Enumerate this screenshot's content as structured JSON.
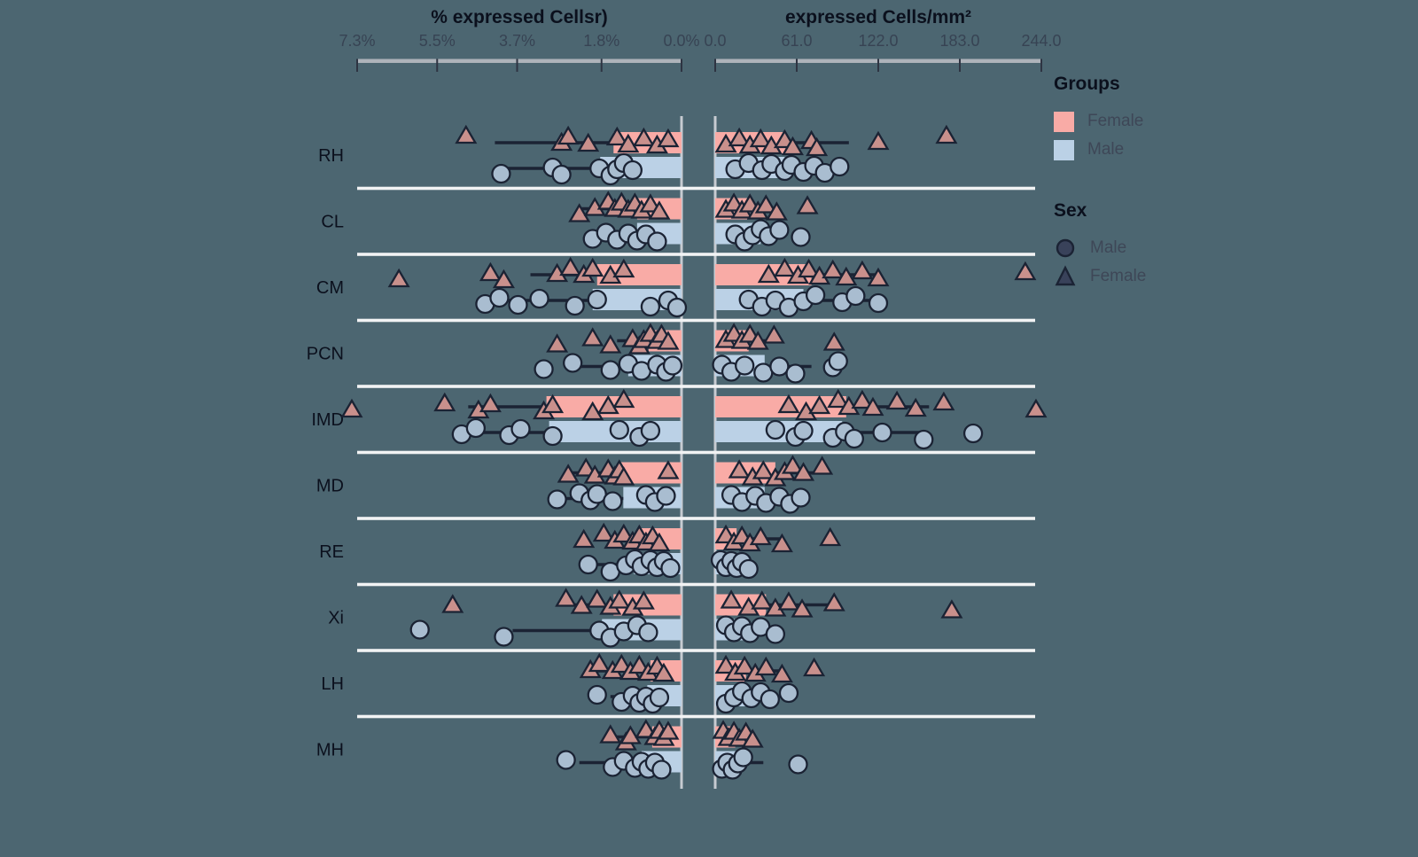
{
  "colors": {
    "background": "#4C6671",
    "female_bar": "#F9ABA6",
    "male_bar": "#BBD1E6",
    "female_point": "#C9908C",
    "male_point": "#A9BDD0",
    "outline": "#1B2334",
    "separator": "#F2F3F4",
    "zero_line": "#C6CBD1",
    "axis_line": "#AEB3BA",
    "tick": "#2E3442",
    "title": "#0B101D",
    "legend_marker": "#39425A"
  },
  "legend": {
    "groups_title": "Groups",
    "groups": [
      {
        "label": "Female",
        "color": "#F9ABA6"
      },
      {
        "label": "Male",
        "color": "#BBD1E6"
      }
    ],
    "sex_title": "Sex",
    "sex": [
      {
        "label": "Male",
        "marker": "circle"
      },
      {
        "label": "Female",
        "marker": "triangle"
      }
    ]
  },
  "chart_data": {
    "type": "bar",
    "subtype": "back-to-back horizontal bars (population-pyramid style) with error bars and jittered points",
    "categories": [
      "RH",
      "CL",
      "CM",
      "PCN",
      "IMD",
      "MD",
      "RE",
      "Xi",
      "LH",
      "MH"
    ],
    "panels": [
      {
        "side": "left",
        "title": "% expressed Cellsr)",
        "tick_labels": [
          "7.3%",
          "5.5%",
          "3.7%",
          "1.8%",
          "0.0%"
        ],
        "tick_values": [
          7.3,
          5.5,
          3.7,
          1.8,
          0.0
        ],
        "axis_min": 0,
        "axis_max": 7.3,
        "reversed": true,
        "unit": "%"
      },
      {
        "side": "right",
        "title": "expressed Cells/mm²",
        "tick_labels": [
          "0.0",
          "61.0",
          "122.0",
          "183.0",
          "244.0"
        ],
        "tick_values": [
          0,
          61,
          122,
          183,
          244
        ],
        "axis_min": 0,
        "axis_max": 244,
        "reversed": false,
        "unit": "cells/mm²"
      }
    ],
    "legend_position": "right",
    "grid": false,
    "rows": [
      {
        "label": "RH",
        "left": {
          "female": {
            "bar": 1.53,
            "whisker": [
              1.53,
              4.2
            ],
            "points": [
              4.85,
              2.7,
              2.55,
              2.1,
              1.45,
              1.2,
              0.85,
              0.55,
              0.3
            ]
          },
          "male": {
            "bar": 1.83,
            "whisker": [
              1.83,
              4.2
            ],
            "points": [
              4.06,
              2.9,
              2.7,
              1.85,
              1.6,
              1.45,
              1.3,
              1.1
            ]
          }
        },
        "right": {
          "female": {
            "bar": 53,
            "whisker": [
              53,
              100
            ],
            "points": [
              8,
              18,
              26,
              34,
              42,
              52,
              58,
              72,
              76,
              122,
              173
            ]
          },
          "male": {
            "bar": 52,
            "whisker": [
              52,
              82
            ],
            "points": [
              15,
              25,
              35,
              42,
              52,
              57,
              66,
              74,
              82,
              93
            ]
          }
        }
      },
      {
        "label": "CL",
        "left": {
          "female": {
            "bar": 1.0,
            "whisker": [
              1.0,
              2.3
            ],
            "points": [
              2.3,
              1.95,
              1.65,
              1.5,
              1.35,
              1.2,
              1.05,
              0.9,
              0.7,
              0.5
            ]
          },
          "male": {
            "bar": 1.0,
            "whisker": [
              1.0,
              2.0
            ],
            "points": [
              2.0,
              1.7,
              1.45,
              1.2,
              1.0,
              0.8,
              0.55
            ]
          }
        },
        "right": {
          "female": {
            "bar": 26,
            "whisker": [
              26,
              47
            ],
            "points": [
              8,
              14,
              20,
              26,
              32,
              38,
              46,
              69
            ]
          },
          "male": {
            "bar": 34,
            "whisker": [
              34,
              50
            ],
            "points": [
              15,
              22,
              28,
              34,
              40,
              48,
              64
            ]
          }
        }
      },
      {
        "label": "CM",
        "left": {
          "female": {
            "bar": 1.9,
            "whisker": [
              1.9,
              3.4
            ],
            "points": [
              6.36,
              4.3,
              4.0,
              2.8,
              2.5,
              2.2,
              2.0,
              1.6,
              1.3
            ]
          },
          "male": {
            "bar": 2.0,
            "whisker": [
              2.0,
              4.2
            ],
            "points": [
              4.42,
              4.1,
              3.68,
              3.2,
              2.4,
              1.9,
              0.7,
              0.3,
              0.1
            ]
          }
        },
        "right": {
          "female": {
            "bar": 72,
            "whisker": [
              72,
              122
            ],
            "points": [
              40,
              52,
              62,
              70,
              78,
              88,
              98,
              110,
              122,
              232
            ]
          },
          "male": {
            "bar": 66,
            "whisker": [
              66,
              125
            ],
            "points": [
              25,
              35,
              45,
              55,
              66,
              75,
              95,
              105,
              122
            ]
          }
        }
      },
      {
        "label": "PCN",
        "left": {
          "female": {
            "bar": 0.74,
            "whisker": [
              0.74,
              1.45
            ],
            "points": [
              2.8,
              2.0,
              1.6,
              1.1,
              0.95,
              0.85,
              0.7,
              0.55,
              0.45,
              0.3
            ]
          },
          "male": {
            "bar": 1.2,
            "whisker": [
              1.2,
              2.45
            ],
            "points": [
              3.1,
              2.45,
              1.6,
              1.2,
              0.9,
              0.55,
              0.35,
              0.2
            ]
          }
        },
        "right": {
          "female": {
            "bar": 25,
            "whisker": [
              25,
              44
            ],
            "points": [
              8,
              14,
              20,
              26,
              32,
              44,
              89
            ]
          },
          "male": {
            "bar": 37,
            "whisker": [
              37,
              72
            ],
            "points": [
              5,
              12,
              22,
              36,
              48,
              60,
              88,
              92
            ]
          }
        }
      },
      {
        "label": "IMD",
        "left": {
          "female": {
            "bar": 3.04,
            "whisker": [
              3.04,
              4.8
            ],
            "points": [
              7.42,
              5.33,
              4.57,
              4.3,
              3.1,
              2.9,
              2.0,
              1.65,
              1.3
            ]
          },
          "male": {
            "bar": 2.98,
            "whisker": [
              2.98,
              4.9
            ],
            "points": [
              4.95,
              4.63,
              3.88,
              3.62,
              2.9,
              1.4,
              0.95,
              0.7
            ]
          }
        },
        "right": {
          "female": {
            "bar": 98,
            "whisker": [
              98,
              160
            ],
            "points": [
              55,
              68,
              78,
              92,
              100,
              110,
              118,
              136,
              150,
              171,
              240
            ]
          },
          "male": {
            "bar": 95,
            "whisker": [
              95,
              156
            ],
            "points": [
              45,
              60,
              66,
              88,
              97,
              104,
              125,
              156,
              193
            ]
          }
        }
      },
      {
        "label": "MD",
        "left": {
          "female": {
            "bar": 1.41,
            "whisker": [
              1.41,
              2.6
            ],
            "points": [
              2.55,
              2.15,
              1.95,
              1.65,
              1.5,
              1.4,
              1.3,
              0.3
            ]
          },
          "male": {
            "bar": 1.31,
            "whisker": [
              1.31,
              2.8
            ],
            "points": [
              2.8,
              2.3,
              2.05,
              1.9,
              1.55,
              0.8,
              0.6,
              0.35
            ]
          }
        },
        "right": {
          "female": {
            "bar": 45,
            "whisker": [
              45,
              80
            ],
            "points": [
              18,
              28,
              36,
              45,
              52,
              58,
              66,
              80
            ]
          },
          "male": {
            "bar": 37,
            "whisker": [
              37,
              64
            ],
            "points": [
              12,
              20,
              30,
              38,
              48,
              56,
              64
            ]
          }
        }
      },
      {
        "label": "RE",
        "left": {
          "female": {
            "bar": 0.95,
            "whisker": [
              0.95,
              1.8
            ],
            "points": [
              2.2,
              1.75,
              1.5,
              1.3,
              1.1,
              0.95,
              0.8,
              0.65,
              0.5
            ]
          },
          "male": {
            "bar": 1.07,
            "whisker": [
              1.07,
              2.1
            ],
            "points": [
              2.1,
              1.6,
              1.25,
              1.05,
              0.9,
              0.7,
              0.55,
              0.4,
              0.25
            ]
          }
        },
        "right": {
          "female": {
            "bar": 16,
            "whisker": [
              16,
              50
            ],
            "points": [
              8,
              14,
              20,
              26,
              34,
              50,
              86
            ]
          },
          "male": {
            "bar": 15,
            "whisker": [
              15,
              25
            ],
            "points": [
              4,
              8,
              12,
              16,
              20,
              25
            ]
          }
        }
      },
      {
        "label": "Xi",
        "left": {
          "female": {
            "bar": 1.53,
            "whisker": [
              1.53,
              2.6
            ],
            "points": [
              5.15,
              2.6,
              2.25,
              1.9,
              1.6,
              1.4,
              1.1,
              0.85
            ]
          },
          "male": {
            "bar": 1.79,
            "whisker": [
              1.79,
              3.8
            ],
            "points": [
              5.89,
              4.0,
              1.85,
              1.6,
              1.3,
              1.0,
              0.75
            ]
          }
        },
        "right": {
          "female": {
            "bar": 38,
            "whisker": [
              38,
              89
            ],
            "points": [
              12,
              25,
              35,
              45,
              55,
              65,
              89,
              177
            ]
          },
          "male": {
            "bar": 25,
            "whisker": [
              25,
              45
            ],
            "points": [
              8,
              14,
              20,
              26,
              34,
              45
            ]
          }
        }
      },
      {
        "label": "LH",
        "left": {
          "female": {
            "bar": 0.7,
            "whisker": [
              0.7,
              2.0
            ],
            "points": [
              2.05,
              1.85,
              1.55,
              1.35,
              1.15,
              0.95,
              0.75,
              0.55,
              0.4
            ]
          },
          "male": {
            "bar": 0.77,
            "whisker": [
              0.77,
              1.6
            ],
            "points": [
              1.9,
              1.35,
              1.1,
              0.95,
              0.8,
              0.65,
              0.5
            ]
          }
        },
        "right": {
          "female": {
            "bar": 23,
            "whisker": [
              23,
              50
            ],
            "points": [
              8,
              15,
              22,
              30,
              38,
              50,
              74
            ]
          },
          "male": {
            "bar": 24,
            "whisker": [
              24,
              45
            ],
            "points": [
              8,
              14,
              20,
              27,
              34,
              41,
              55
            ]
          }
        }
      },
      {
        "label": "MH",
        "left": {
          "female": {
            "bar": 0.66,
            "whisker": [
              0.66,
              1.6
            ],
            "points": [
              1.6,
              1.25,
              1.15,
              0.8,
              0.6,
              0.5,
              0.4,
              0.3
            ]
          },
          "male": {
            "bar": 0.9,
            "whisker": [
              0.9,
              2.3
            ],
            "points": [
              2.6,
              1.55,
              1.3,
              1.05,
              0.9,
              0.75,
              0.6,
              0.45
            ]
          }
        },
        "right": {
          "female": {
            "bar": 15,
            "whisker": [
              15,
              30
            ],
            "points": [
              6,
              10,
              14,
              18,
              23,
              28
            ]
          },
          "male": {
            "bar": 16,
            "whisker": [
              16,
              36
            ],
            "points": [
              5,
              9,
              13,
              17,
              21,
              62
            ]
          }
        }
      }
    ]
  }
}
